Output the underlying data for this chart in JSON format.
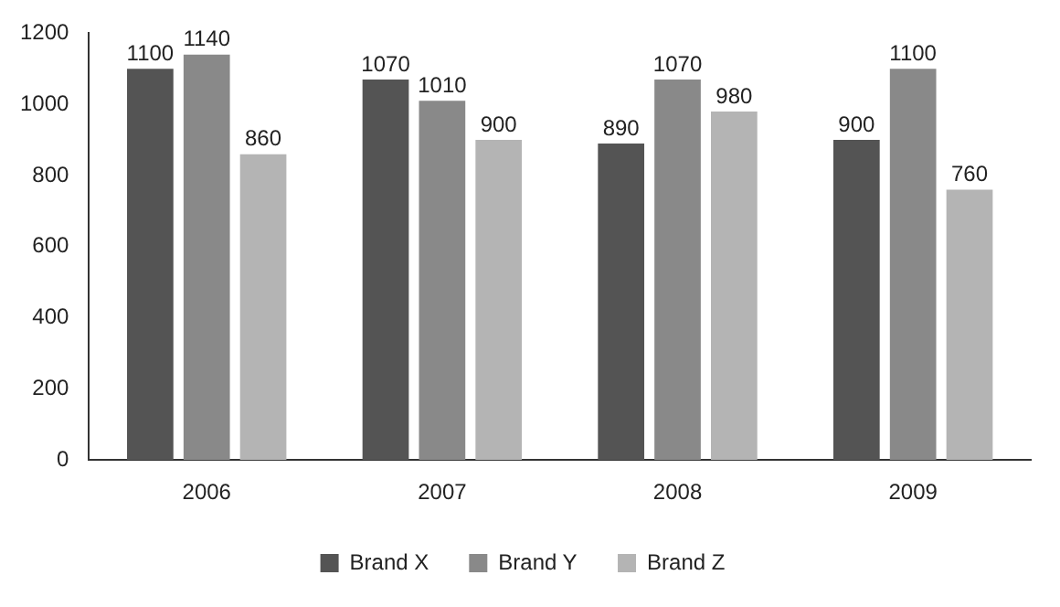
{
  "chart_data": {
    "type": "bar",
    "categories": [
      "2006",
      "2007",
      "2008",
      "2009"
    ],
    "series": [
      {
        "name": "Brand X",
        "color": "#545454",
        "values": [
          1100,
          1070,
          890,
          900
        ]
      },
      {
        "name": "Brand Y",
        "color": "#898989",
        "values": [
          1140,
          1010,
          1070,
          1100
        ]
      },
      {
        "name": "Brand Z",
        "color": "#b4b4b4",
        "values": [
          860,
          900,
          980,
          760
        ]
      }
    ],
    "ylim": [
      0,
      1200
    ],
    "yticks": [
      0,
      200,
      400,
      600,
      800,
      1000,
      1200
    ],
    "grid": false,
    "legend": "bottom",
    "data_labels": true
  }
}
